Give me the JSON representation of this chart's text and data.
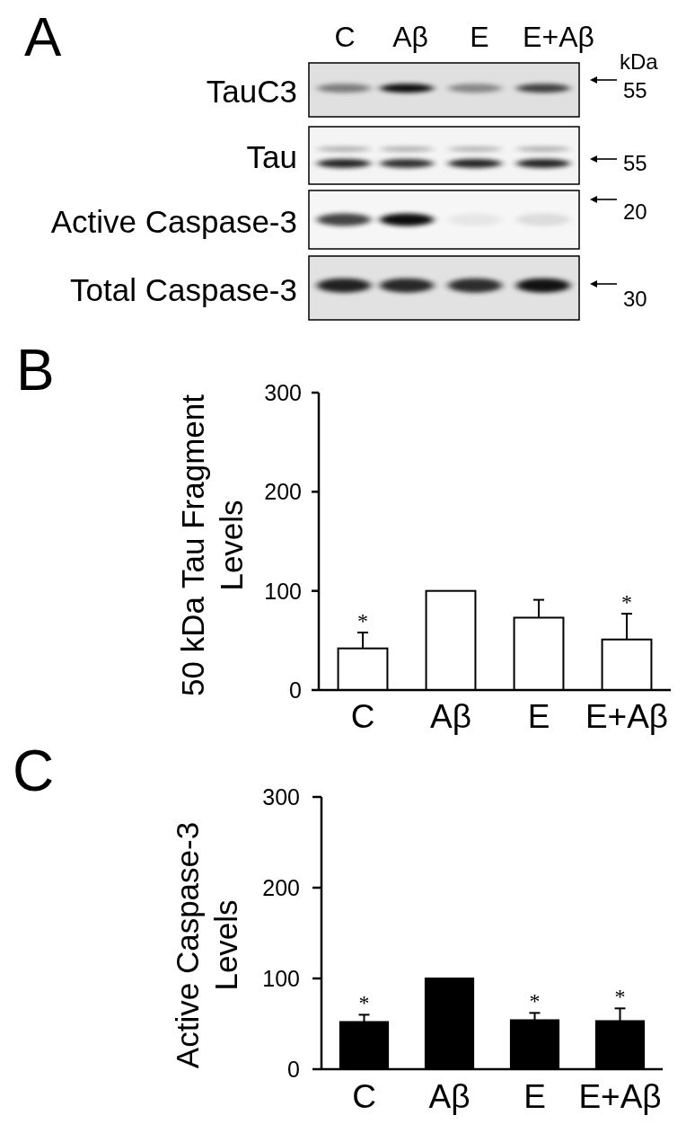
{
  "chart_data": [
    {
      "type": "other",
      "title": "A",
      "categories": [
        "C",
        "Aβ",
        "E",
        "E+Aβ"
      ],
      "y_categories": [
        "TauC3",
        "Tau",
        "Active Caspase-3",
        "Total Caspase-3"
      ],
      "y2_categories": [
        "55",
        "55",
        "20",
        "30"
      ],
      "y2label": "kDa"
    },
    {
      "type": "bar",
      "title": "B",
      "categories": [
        "C",
        "Aβ",
        "E",
        "E+Aβ"
      ],
      "values": [
        42,
        100,
        73,
        51
      ],
      "errors": [
        [
          42,
          58
        ],
        null,
        [
          73,
          91
        ],
        [
          51,
          77
        ]
      ],
      "color": "#ffffff",
      "ylim": [
        0,
        300
      ],
      "yticks": [
        0,
        100,
        200,
        300
      ],
      "ylabel": "50 kDa Tau Fragment Levels",
      "annotations": [
        {
          "text": "*",
          "x": "C",
          "y": 42
        },
        {
          "text": "*",
          "x": "E+Aβ",
          "y": 51
        }
      ]
    },
    {
      "type": "bar",
      "title": "C",
      "categories": [
        "C",
        "Aβ",
        "E",
        "E+Aβ"
      ],
      "values": [
        52,
        100,
        54,
        53
      ],
      "errors": [
        [
          52,
          60
        ],
        null,
        [
          54,
          62
        ],
        [
          53,
          67
        ]
      ],
      "color": "#000000",
      "ylim": [
        0,
        300
      ],
      "yticks": [
        0,
        100,
        200,
        300
      ],
      "ylabel": "Active Caspase-3 Levels",
      "annotations": [
        {
          "text": "*",
          "x": "C",
          "y": 52
        },
        {
          "text": "*",
          "x": "E",
          "y": 54
        },
        {
          "text": "*",
          "x": "E+Aβ",
          "y": 53
        }
      ]
    }
  ]
}
